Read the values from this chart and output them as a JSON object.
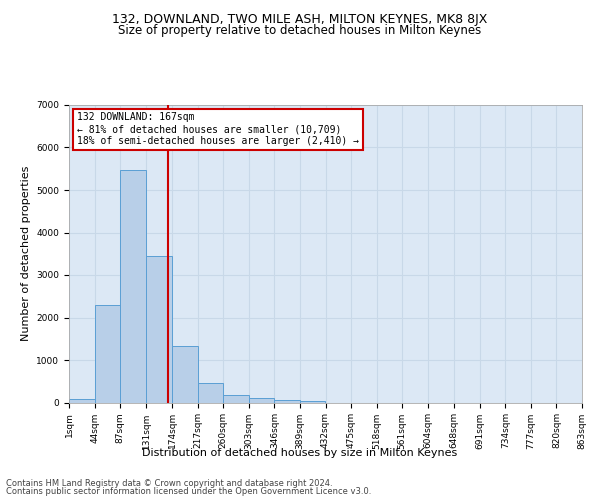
{
  "title": "132, DOWNLAND, TWO MILE ASH, MILTON KEYNES, MK8 8JX",
  "subtitle": "Size of property relative to detached houses in Milton Keynes",
  "xlabel": "Distribution of detached houses by size in Milton Keynes",
  "ylabel": "Number of detached properties",
  "bar_edges": [
    1,
    44,
    87,
    131,
    174,
    217,
    260,
    303,
    346,
    389,
    432,
    475,
    518,
    561,
    604,
    648,
    691,
    734,
    777,
    820,
    863
  ],
  "bar_heights": [
    80,
    2300,
    5480,
    3450,
    1320,
    470,
    175,
    100,
    70,
    45,
    0,
    0,
    0,
    0,
    0,
    0,
    0,
    0,
    0,
    0
  ],
  "bar_color": "#b8cfe8",
  "bar_edge_color": "#5a9fd4",
  "vline_x": 167,
  "vline_color": "#cc0000",
  "annotation_text": "132 DOWNLAND: 167sqm\n← 81% of detached houses are smaller (10,709)\n18% of semi-detached houses are larger (2,410) →",
  "annotation_box_color": "#ffffff",
  "annotation_box_edgecolor": "#cc0000",
  "ylim": [
    0,
    7000
  ],
  "grid_color": "#c8d8e8",
  "background_color": "#dce8f5",
  "tick_labels": [
    "1sqm",
    "44sqm",
    "87sqm",
    "131sqm",
    "174sqm",
    "217sqm",
    "260sqm",
    "303sqm",
    "346sqm",
    "389sqm",
    "432sqm",
    "475sqm",
    "518sqm",
    "561sqm",
    "604sqm",
    "648sqm",
    "691sqm",
    "734sqm",
    "777sqm",
    "820sqm",
    "863sqm"
  ],
  "footer_line1": "Contains HM Land Registry data © Crown copyright and database right 2024.",
  "footer_line2": "Contains public sector information licensed under the Open Government Licence v3.0.",
  "title_fontsize": 9,
  "subtitle_fontsize": 8.5,
  "xlabel_fontsize": 8,
  "ylabel_fontsize": 8,
  "tick_fontsize": 6.5,
  "annotation_fontsize": 7,
  "footer_fontsize": 6
}
